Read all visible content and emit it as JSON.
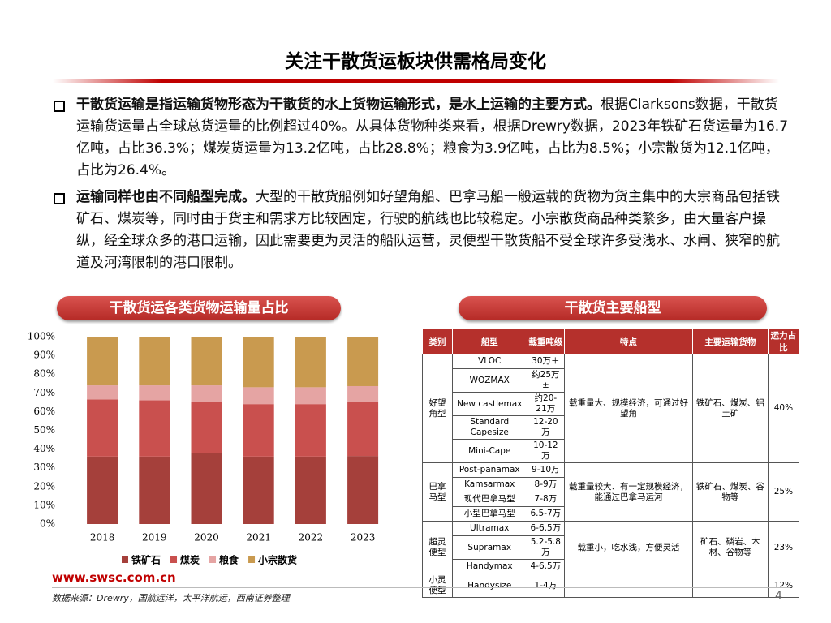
{
  "header": {
    "title": "关注干散货运板块供需格局变化"
  },
  "bullets": [
    {
      "bold": "干散货运输是指运输货物形态为干散货的水上货物运输形式，是水上运输的主要方式。",
      "text": "根据Clarksons数据，干散货运输货运量占全球总货运量的比例超过40%。从具体货物种类来看，根据Drewry数据，2023年铁矿石货运量为16.7亿吨，占比36.3%；煤炭货运量为13.2亿吨，占比28.8%；粮食为3.9亿吨，占比为8.5%；小宗散货为12.1亿吨，占比为26.4%。"
    },
    {
      "bold": "运输同样也由不同船型完成。",
      "text": "大型的干散货船例如好望角船、巴拿马船一般运载的货物为货主集中的大宗商品包括铁矿石、煤炭等，同时由于货主和需求方比较固定，行驶的航线也比较稳定。小宗散货商品种类繁多，由大量客户操纵，经全球众多的港口运输，因此需要更为灵活的船队运营，灵便型干散货船不受全球许多受浅水、水闸、狭窄的航道及河湾限制的港口限制。"
    }
  ],
  "chart_data": {
    "type": "bar",
    "stacked": true,
    "title": "干散货运各类货物运输量占比",
    "grid": false,
    "categories": [
      "2018",
      "2019",
      "2020",
      "2021",
      "2022",
      "2023"
    ],
    "series": [
      {
        "name": "铁矿石",
        "color": "#a5403b",
        "values": [
          36,
          36,
          38,
          36,
          36,
          36.3
        ]
      },
      {
        "name": "煤炭",
        "color": "#c9504e",
        "values": [
          30.5,
          30,
          27,
          28,
          28,
          28.8
        ]
      },
      {
        "name": "粮食",
        "color": "#e5a4a3",
        "values": [
          7.5,
          8,
          9,
          9,
          9,
          8.5
        ]
      },
      {
        "name": "小宗散货",
        "color": "#c99a4f",
        "values": [
          26,
          26,
          26,
          27,
          27,
          26.4
        ]
      }
    ],
    "ylim": [
      0,
      100
    ],
    "yticks": [
      {
        "value": 0,
        "label": "0%"
      },
      {
        "value": 10,
        "label": "10%"
      },
      {
        "value": 20,
        "label": "20%"
      },
      {
        "value": 30,
        "label": "30%"
      },
      {
        "value": 40,
        "label": "40%"
      },
      {
        "value": 50,
        "label": "50%"
      },
      {
        "value": 60,
        "label": "60%"
      },
      {
        "value": 70,
        "label": "70%"
      },
      {
        "value": 80,
        "label": "80%"
      },
      {
        "value": 90,
        "label": "90%"
      },
      {
        "value": 100,
        "label": "100%"
      }
    ]
  },
  "table": {
    "title": "干散货主要船型",
    "header": [
      "类别",
      "船型",
      "载重吨级",
      "特点",
      "主要运输货物",
      "运力占比"
    ],
    "groups": [
      {
        "type": "好望角型",
        "ships": [
          {
            "name": "VLOC",
            "dwt": "30万＋"
          },
          {
            "name": "WOZMAX",
            "dwt": "约25万±"
          },
          {
            "name": "New castlemax",
            "dwt": "约20-21万"
          },
          {
            "name": "Standard Capesize",
            "dwt": "12-20万"
          },
          {
            "name": "Mini-Cape",
            "dwt": "10-12万"
          }
        ],
        "feature": "载重量大、规模经济，可通过好望角",
        "goods": "铁矿石、煤炭、铝土矿",
        "share": "40%"
      },
      {
        "type": "巴拿马型",
        "ships": [
          {
            "name": "Post-panamax",
            "dwt": "9-10万"
          },
          {
            "name": "Kamsarmax",
            "dwt": "8-9万"
          },
          {
            "name": "现代巴拿马型",
            "dwt": "7-8万"
          },
          {
            "name": "小型巴拿马型",
            "dwt": "6.5-7万"
          }
        ],
        "feature": "载重量较大、有一定规模经济，能通过巴拿马运河",
        "goods": "铁矿石、煤炭、谷物等",
        "share": "25%"
      },
      {
        "type": "超灵便型",
        "ships": [
          {
            "name": "Ultramax",
            "dwt": "6-6.5万"
          },
          {
            "name": "Supramax",
            "dwt": "5.2-5.8万"
          },
          {
            "name": "Handymax",
            "dwt": "4-6.5万"
          }
        ],
        "feature": "载重小，吃水浅，方便灵活",
        "goods": "矿石、磷岩、木材、谷物等",
        "share": "23%"
      },
      {
        "type": "小灵便型",
        "ships": [
          {
            "name": "Handysize",
            "dwt": "1-4万"
          }
        ],
        "share": "12%"
      }
    ]
  },
  "footer": {
    "site": "www.swsc.com.cn",
    "source": "数据来源：Drewry，国航远洋，太平洋航运，西南证券整理",
    "page": 4
  }
}
